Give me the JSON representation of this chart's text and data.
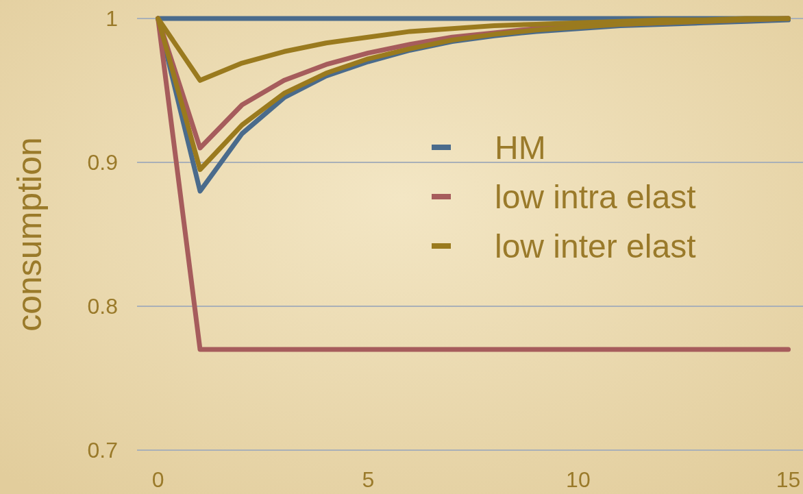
{
  "chart_data": {
    "type": "line",
    "ylabel": "consumption",
    "x": [
      0,
      1,
      2,
      3,
      4,
      5,
      6,
      7,
      8,
      9,
      10,
      11,
      12,
      13,
      14,
      15
    ],
    "xlim": [
      -0.5,
      15.35
    ],
    "xticks": [
      0,
      5,
      10,
      15
    ],
    "ylim": [
      0.7,
      1.0
    ],
    "yticks": [
      0.7,
      0.8,
      0.9,
      1
    ],
    "grid": "y",
    "legend": "right",
    "marker": "none",
    "line_style": "solid",
    "series": [
      {
        "name": "HM",
        "color": "#4a6b8c",
        "values": [
          1,
          1,
          1,
          1,
          1,
          1,
          1,
          1,
          1,
          1,
          1,
          1,
          1,
          1,
          1,
          1
        ]
      },
      {
        "color": "#4a6b8c",
        "values": [
          1,
          0.88,
          0.92,
          0.945,
          0.96,
          0.97,
          0.978,
          0.984,
          0.988,
          0.991,
          0.993,
          0.995,
          0.996,
          0.997,
          0.998,
          0.999
        ]
      },
      {
        "name": "low intra elast",
        "color": "#a65c5c",
        "values": [
          1,
          0.77,
          0.77,
          0.77,
          0.77,
          0.77,
          0.77,
          0.77,
          0.77,
          0.77,
          0.77,
          0.77,
          0.77,
          0.77,
          0.77,
          0.77
        ]
      },
      {
        "color": "#a65c5c",
        "values": [
          1,
          0.91,
          0.94,
          0.957,
          0.968,
          0.976,
          0.982,
          0.987,
          0.99,
          0.993,
          0.995,
          0.996,
          0.997,
          0.998,
          0.999,
          1
        ]
      },
      {
        "name": "low inter elast",
        "color": "#9a7a1e",
        "values": [
          1,
          0.957,
          0.969,
          0.977,
          0.983,
          0.987,
          0.991,
          0.993,
          0.995,
          0.996,
          0.997,
          0.998,
          0.999,
          0.999,
          1,
          1
        ]
      },
      {
        "color": "#9a7a1e",
        "values": [
          1,
          0.895,
          0.926,
          0.948,
          0.962,
          0.972,
          0.979,
          0.985,
          0.989,
          0.992,
          0.994,
          0.996,
          0.997,
          0.998,
          0.999,
          1
        ]
      }
    ]
  }
}
